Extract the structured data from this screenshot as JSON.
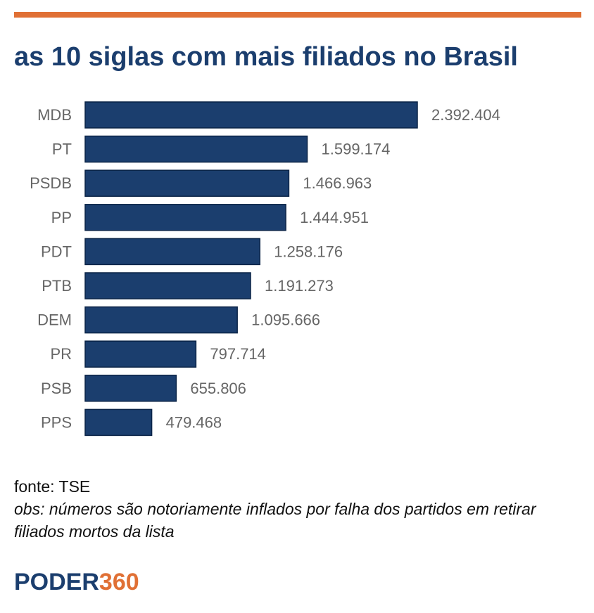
{
  "colors": {
    "accent": "#E07035",
    "title": "#1B3E6E",
    "bar": "#1B3E6E",
    "label": "#666666"
  },
  "header": {
    "title": "as 10 siglas com mais filiados no Brasil"
  },
  "chart_data": {
    "type": "bar",
    "orientation": "horizontal",
    "categories": [
      "MDB",
      "PT",
      "PSDB",
      "PP",
      "PDT",
      "PTB",
      "DEM",
      "PR",
      "PSB",
      "PPS"
    ],
    "values": [
      2392404,
      1599174,
      1466963,
      1444951,
      1258176,
      1191273,
      1095666,
      797714,
      655806,
      479468
    ],
    "value_labels": [
      "2.392.404",
      "1.599.174",
      "1.466.963",
      "1.444.951",
      "1.258.176",
      "1.191.273",
      "1.095.666",
      "797.714",
      "655.806",
      "479.468"
    ],
    "xlim": [
      0,
      2392404
    ],
    "grid": false,
    "legend": "none"
  },
  "footer": {
    "source": "fonte: TSE",
    "note": "obs: números são notoriamente inflados por falha dos partidos em retirar filiados mortos da lista"
  },
  "brand": {
    "logo_text_main": "PODER",
    "logo_text_accent": "360"
  }
}
